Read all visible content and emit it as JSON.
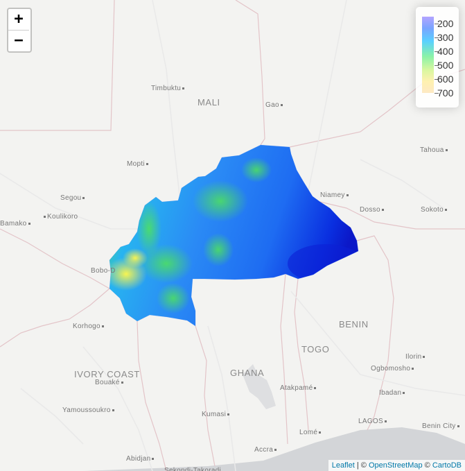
{
  "zoom": {
    "in_label": "+",
    "out_label": "−"
  },
  "legend": {
    "labels": [
      "200",
      "300",
      "400",
      "500",
      "600",
      "700"
    ],
    "colors": [
      "#b3a4ff",
      "#5ad0ff",
      "#8af2a8",
      "#fde9c4"
    ]
  },
  "attribution": {
    "leaflet": "Leaflet",
    "sep1": " | © ",
    "osm": "OpenStreetMap",
    "sep2": " © ",
    "carto": "CartoDB"
  },
  "countries": [
    {
      "name": "MALI",
      "id": "mali"
    },
    {
      "name": "BENIN",
      "id": "benin"
    },
    {
      "name": "TOGO",
      "id": "togo"
    },
    {
      "name": "GHANA",
      "id": "ghana"
    },
    {
      "name": "IVORY COAST",
      "id": "ivory-coast"
    }
  ],
  "cities": [
    {
      "name": "Timbuktu",
      "id": "timbuktu",
      "dot": "after"
    },
    {
      "name": "Gao",
      "id": "gao",
      "dot": "after"
    },
    {
      "name": "Tahoua",
      "id": "tahoua",
      "dot": "after"
    },
    {
      "name": "Mopti",
      "id": "mopti",
      "dot": "after"
    },
    {
      "name": "Segou",
      "id": "segou",
      "dot": "after"
    },
    {
      "name": "Niamey",
      "id": "niamey",
      "dot": "after"
    },
    {
      "name": "Dosso",
      "id": "dosso",
      "dot": "after"
    },
    {
      "name": "Sokoto",
      "id": "sokoto",
      "dot": "after"
    },
    {
      "name": "Bamako",
      "id": "bamako",
      "dot": "after"
    },
    {
      "name": "Koulikoro",
      "id": "koulikoro",
      "dot": "before"
    },
    {
      "name": "Bobo-D",
      "id": "bobo-dioulasso",
      "dot": "none"
    },
    {
      "name": "Korhogo",
      "id": "korhogo",
      "dot": "after"
    },
    {
      "name": "Ilorin",
      "id": "ilorin",
      "dot": "after"
    },
    {
      "name": "Ogbomosho",
      "id": "ogbomosho",
      "dot": "after"
    },
    {
      "name": "Bouaké",
      "id": "bouake",
      "dot": "after"
    },
    {
      "name": "Atakpamé",
      "id": "atakpame",
      "dot": "after"
    },
    {
      "name": "Ibadan",
      "id": "ibadan",
      "dot": "after"
    },
    {
      "name": "Yamoussoukro",
      "id": "yamoussoukro",
      "dot": "after"
    },
    {
      "name": "Kumasi",
      "id": "kumasi",
      "dot": "after"
    },
    {
      "name": "LAGOS",
      "id": "lagos",
      "dot": "after"
    },
    {
      "name": "Benin City",
      "id": "benin-city",
      "dot": "after"
    },
    {
      "name": "Lomé",
      "id": "lome",
      "dot": "after"
    },
    {
      "name": "Accra",
      "id": "accra",
      "dot": "after"
    },
    {
      "name": "Abidjan",
      "id": "abidjan",
      "dot": "after"
    },
    {
      "name": "Sekondi-Takoradi",
      "id": "sekondi-takoradi",
      "dot": "none"
    }
  ]
}
